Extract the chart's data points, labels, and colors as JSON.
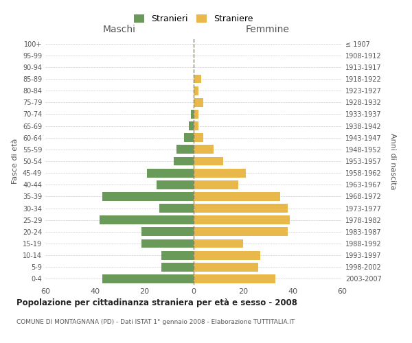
{
  "age_groups": [
    "0-4",
    "5-9",
    "10-14",
    "15-19",
    "20-24",
    "25-29",
    "30-34",
    "35-39",
    "40-44",
    "45-49",
    "50-54",
    "55-59",
    "60-64",
    "65-69",
    "70-74",
    "75-79",
    "80-84",
    "85-89",
    "90-94",
    "95-99",
    "100+"
  ],
  "birth_years": [
    "2003-2007",
    "1998-2002",
    "1993-1997",
    "1988-1992",
    "1983-1987",
    "1978-1982",
    "1973-1977",
    "1968-1972",
    "1963-1967",
    "1958-1962",
    "1953-1957",
    "1948-1952",
    "1943-1947",
    "1938-1942",
    "1933-1937",
    "1928-1932",
    "1923-1927",
    "1918-1922",
    "1913-1917",
    "1908-1912",
    "≤ 1907"
  ],
  "maschi": [
    37,
    13,
    13,
    21,
    21,
    38,
    14,
    37,
    15,
    19,
    8,
    7,
    4,
    2,
    1,
    0,
    0,
    0,
    0,
    0,
    0
  ],
  "femmine": [
    33,
    26,
    27,
    20,
    38,
    39,
    38,
    35,
    18,
    21,
    12,
    8,
    4,
    2,
    2,
    4,
    2,
    3,
    0,
    0,
    0
  ],
  "color_maschi": "#6a9a5a",
  "color_femmine": "#e8b84b",
  "color_dashed_line": "#888870",
  "title": "Popolazione per cittadinanza straniera per età e sesso - 2008",
  "subtitle": "COMUNE DI MONTAGNANA (PD) - Dati ISTAT 1° gennaio 2008 - Elaborazione TUTTITALIA.IT",
  "xlabel_left": "Maschi",
  "xlabel_right": "Femmine",
  "ylabel_left": "Fasce di età",
  "ylabel_right": "Anni di nascita",
  "legend_maschi": "Stranieri",
  "legend_femmine": "Straniere",
  "xlim": 60,
  "background_color": "#ffffff",
  "grid_color": "#cccccc",
  "text_color": "#555555"
}
